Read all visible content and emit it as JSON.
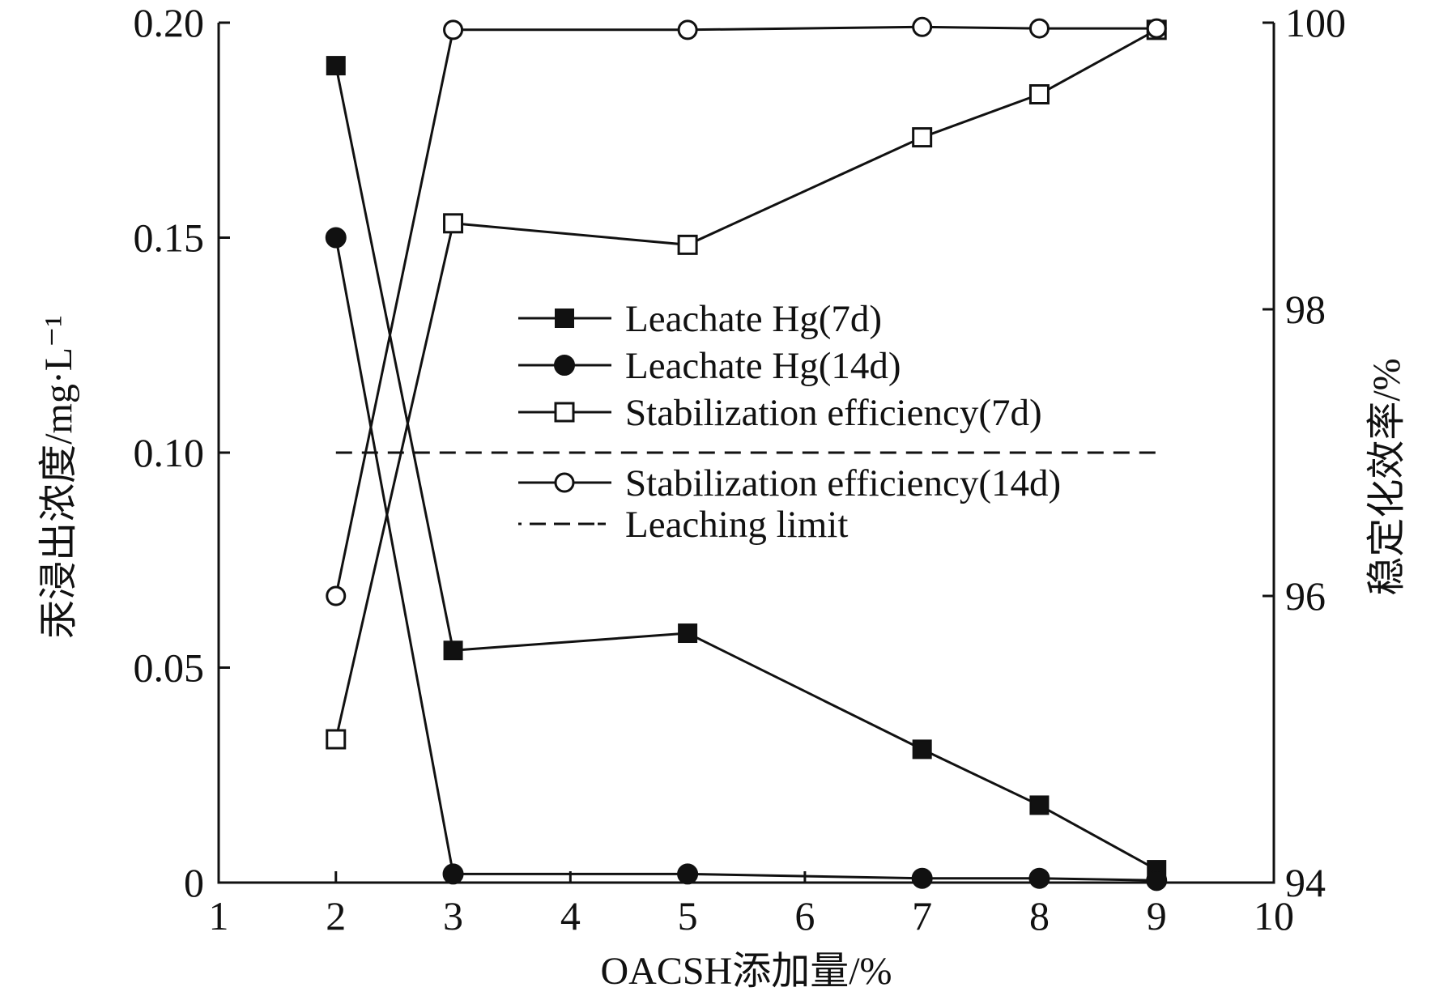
{
  "chart_data": {
    "type": "line",
    "xlabel": "OACSH添加量/%",
    "ylabel_left": "汞浸出浓度/mg·L⁻¹",
    "ylabel_right": "稳定化效率/%",
    "xlim": [
      1,
      10
    ],
    "ylim_left": [
      0,
      0.2
    ],
    "ylim_right": [
      94,
      100
    ],
    "x_ticks": [
      "1",
      "2",
      "3",
      "4",
      "5",
      "6",
      "7",
      "8",
      "9",
      "10"
    ],
    "y_left_ticks": [
      "0",
      "0.05",
      "0.10",
      "0.15",
      "0.20"
    ],
    "y_right_ticks": [
      "94",
      "96",
      "98",
      "100"
    ],
    "legend_position": "center",
    "series": [
      {
        "name": "Leachate Hg(7d)",
        "axis": "left",
        "marker": "filled-square",
        "x": [
          2,
          3,
          5,
          7,
          8,
          9
        ],
        "values": [
          0.19,
          0.054,
          0.058,
          0.031,
          0.018,
          0.003
        ]
      },
      {
        "name": "Leachate Hg(14d)",
        "axis": "left",
        "marker": "filled-circle",
        "x": [
          2,
          3,
          5,
          7,
          8,
          9
        ],
        "values": [
          0.15,
          0.002,
          0.002,
          0.001,
          0.001,
          0.0005
        ]
      },
      {
        "name": "Stabilization efficiency(7d)",
        "axis": "right",
        "marker": "open-square",
        "x": [
          2,
          3,
          5,
          7,
          8,
          9
        ],
        "values": [
          95.0,
          98.6,
          98.45,
          99.2,
          99.5,
          99.95
        ]
      },
      {
        "name": "Stabilization efficiency(14d)",
        "axis": "right",
        "marker": "open-circle",
        "x": [
          2,
          3,
          5,
          7,
          8,
          9
        ],
        "values": [
          96.0,
          99.95,
          99.95,
          99.97,
          99.96,
          99.96
        ]
      },
      {
        "name": "Leaching limit",
        "axis": "left",
        "marker": "dashed-line",
        "x": [
          2,
          9
        ],
        "values": [
          0.1,
          0.1
        ]
      }
    ]
  }
}
